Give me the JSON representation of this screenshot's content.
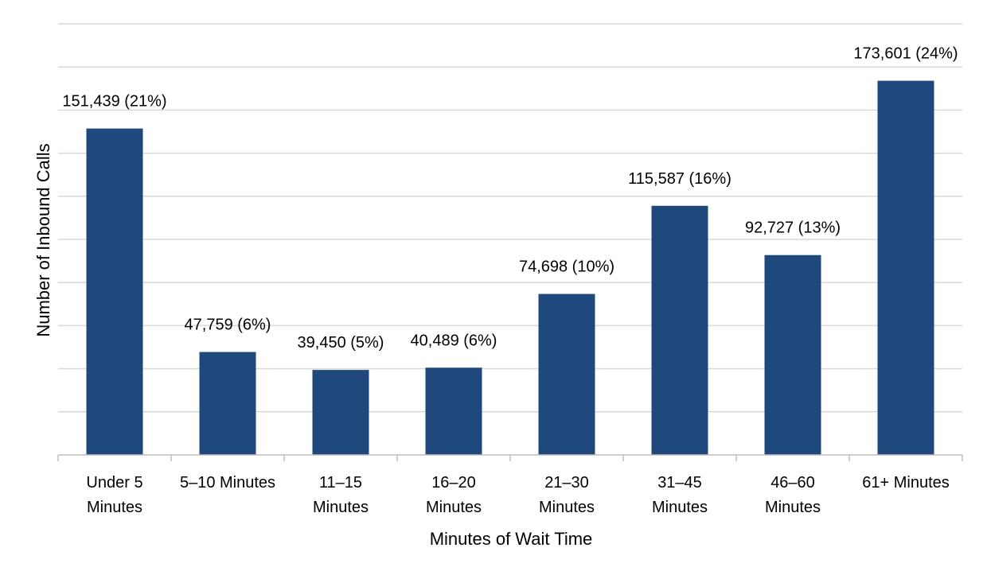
{
  "chart_data": {
    "type": "bar",
    "xlabel": "Minutes of Wait Time",
    "ylabel": "Number of Inbound Calls",
    "ylim": [
      0,
      200000
    ],
    "grid": true,
    "bar_color": "#1F497D",
    "grid_color": "#D9D9D9",
    "axis_color": "#BFBFBF",
    "categories": [
      [
        "Under 5",
        "Minutes"
      ],
      [
        "5–10 Minutes"
      ],
      [
        "11–15",
        "Minutes"
      ],
      [
        "16–20",
        "Minutes"
      ],
      [
        "21–30",
        "Minutes"
      ],
      [
        "31–45",
        "Minutes"
      ],
      [
        "46–60",
        "Minutes"
      ],
      [
        "61+ Minutes"
      ]
    ],
    "values": [
      151439,
      47759,
      39450,
      40489,
      74698,
      115587,
      92727,
      173601
    ],
    "data_labels": [
      "151,439 (21%)",
      "47,759 (6%)",
      "39,450 (5%)",
      "40,489 (6%)",
      "74,698 (10%)",
      "115,587 (16%)",
      "92,727 (13%)",
      "173,601 (24%)"
    ]
  }
}
